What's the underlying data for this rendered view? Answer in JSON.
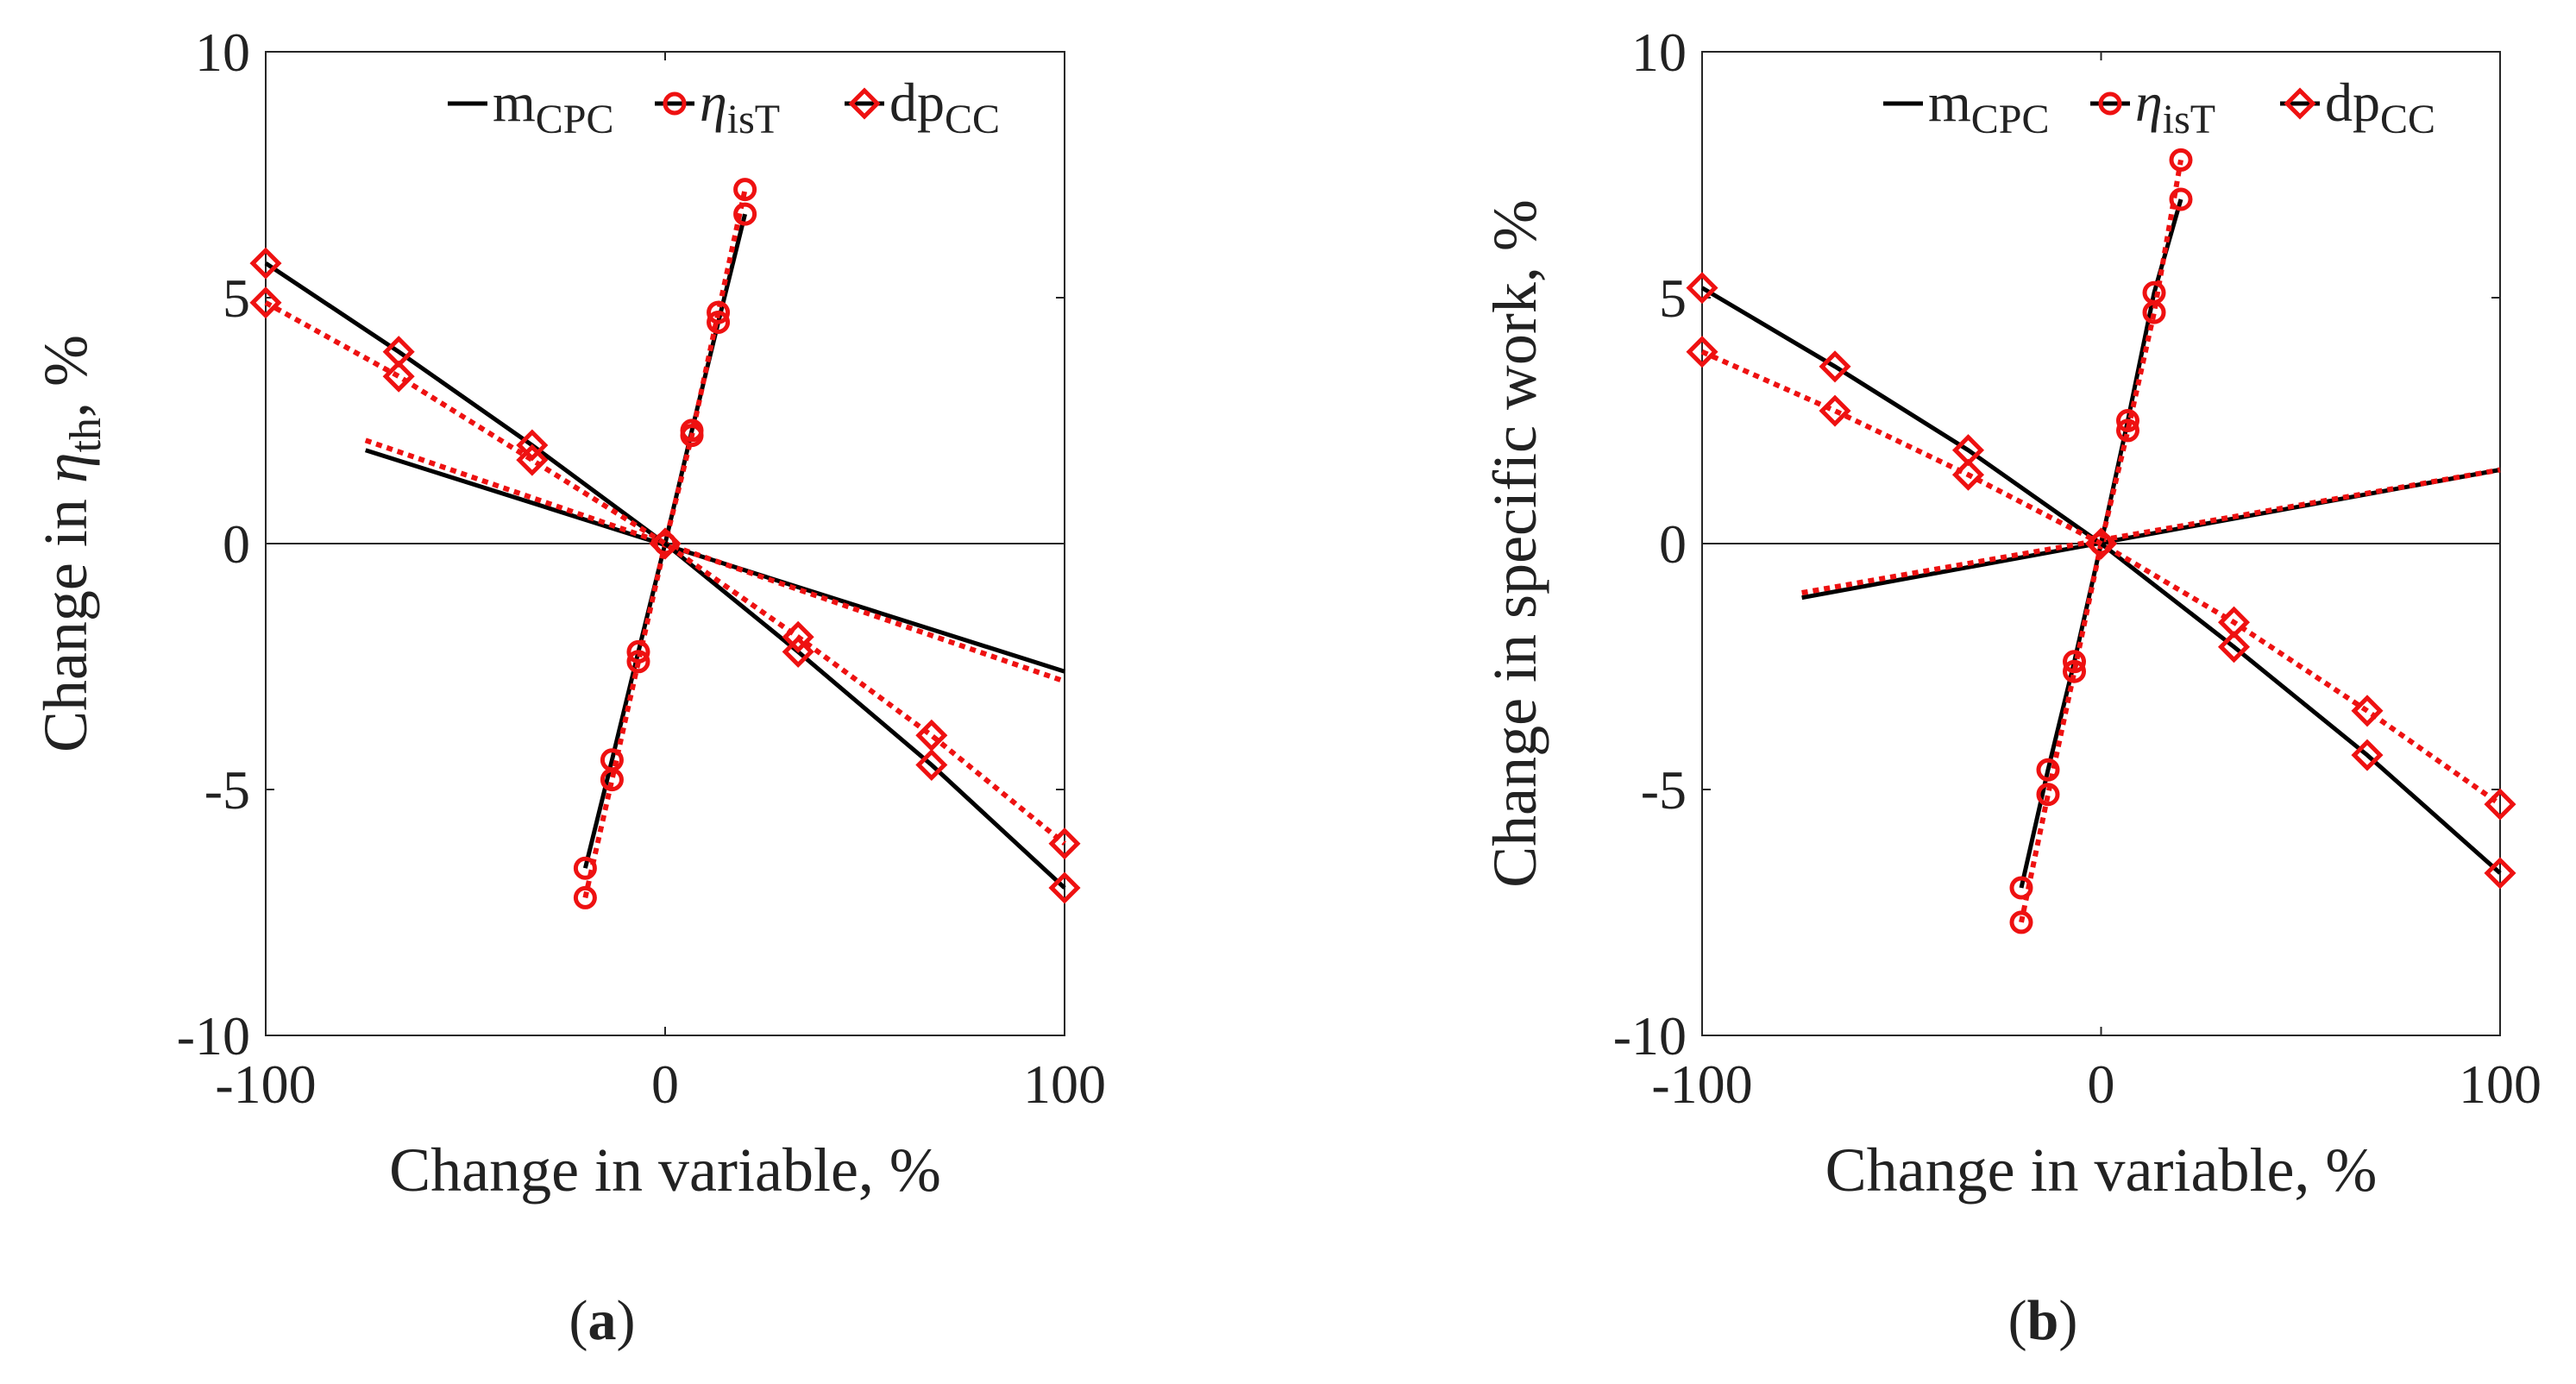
{
  "figure": {
    "captions": [
      "a",
      "b"
    ]
  },
  "chart_data": [
    {
      "type": "line",
      "panel": "a",
      "xlabel": "Change in variable, %",
      "ylabel_prefix": "Change in ",
      "ylabel_symbol": "η",
      "ylabel_sub": "th",
      "ylabel_suffix": ", %",
      "xlim": [
        -100,
        100
      ],
      "ylim": [
        -10,
        10
      ],
      "xticks": [
        -100,
        0,
        100
      ],
      "yticks": [
        -10,
        -5,
        0,
        5,
        10
      ],
      "grid": false,
      "zero_line": true,
      "legend_position": "top-right",
      "legend": [
        {
          "base": "m",
          "sub": "CPC",
          "marker": "none"
        },
        {
          "base": "η",
          "sub": "isT",
          "marker": "circle"
        },
        {
          "base": "dp",
          "sub": "CC",
          "marker": "diamond"
        }
      ],
      "colors": {
        "model": "#000000",
        "fit": "#ee1111"
      },
      "series": [
        {
          "name": "m_CPC model",
          "style": "solid",
          "marker": "none",
          "x": [
            -75,
            100
          ],
          "y": [
            1.9,
            -2.6
          ]
        },
        {
          "name": "m_CPC fit",
          "style": "dotted",
          "marker": "none",
          "x": [
            -75,
            100
          ],
          "y": [
            2.1,
            -2.8
          ]
        },
        {
          "name": "eta_isT model",
          "style": "solid",
          "marker": "circle",
          "x": [
            -20,
            -13.3,
            -6.7,
            0,
            6.7,
            13.3,
            20
          ],
          "y": [
            -6.6,
            -4.4,
            -2.2,
            0,
            2.3,
            4.5,
            6.7
          ]
        },
        {
          "name": "eta_isT fit",
          "style": "dotted",
          "marker": "circle",
          "x": [
            -20,
            -13.3,
            -6.7,
            0,
            6.7,
            13.3,
            20
          ],
          "y": [
            -7.2,
            -4.8,
            -2.4,
            0,
            2.2,
            4.7,
            7.2
          ]
        },
        {
          "name": "dp_CC model",
          "style": "solid",
          "marker": "diamond",
          "x": [
            -100,
            -66.7,
            -33.3,
            0,
            33.3,
            66.7,
            100
          ],
          "y": [
            5.7,
            3.9,
            2.0,
            0,
            -2.2,
            -4.5,
            -7.0
          ]
        },
        {
          "name": "dp_CC fit",
          "style": "dotted",
          "marker": "diamond",
          "x": [
            -100,
            -66.7,
            -33.3,
            0,
            33.3,
            66.7,
            100
          ],
          "y": [
            4.9,
            3.4,
            1.7,
            0,
            -1.9,
            -3.9,
            -6.1
          ]
        }
      ]
    },
    {
      "type": "line",
      "panel": "b",
      "xlabel": "Change in variable, %",
      "ylabel_prefix": "Change in specific work, %",
      "ylabel_symbol": "",
      "ylabel_sub": "",
      "ylabel_suffix": "",
      "xlim": [
        -100,
        100
      ],
      "ylim": [
        -10,
        10
      ],
      "xticks": [
        -100,
        0,
        100
      ],
      "yticks": [
        -10,
        -5,
        0,
        5,
        10
      ],
      "grid": false,
      "zero_line": true,
      "legend_position": "top-right",
      "legend": [
        {
          "base": "m",
          "sub": "CPC",
          "marker": "none"
        },
        {
          "base": "η",
          "sub": "isT",
          "marker": "circle"
        },
        {
          "base": "dp",
          "sub": "CC",
          "marker": "diamond"
        }
      ],
      "colors": {
        "model": "#000000",
        "fit": "#ee1111"
      },
      "series": [
        {
          "name": "m_CPC model",
          "style": "solid",
          "marker": "none",
          "x": [
            -75,
            100
          ],
          "y": [
            -1.1,
            1.5
          ]
        },
        {
          "name": "m_CPC fit",
          "style": "dotted",
          "marker": "none",
          "x": [
            -75,
            100
          ],
          "y": [
            -1.0,
            1.5
          ]
        },
        {
          "name": "eta_isT model",
          "style": "solid",
          "marker": "circle",
          "x": [
            -20,
            -13.3,
            -6.7,
            0,
            6.7,
            13.3,
            20
          ],
          "y": [
            -7.0,
            -4.6,
            -2.4,
            0,
            2.5,
            5.1,
            7.0
          ]
        },
        {
          "name": "eta_isT fit",
          "style": "dotted",
          "marker": "circle",
          "x": [
            -20,
            -13.3,
            -6.7,
            0,
            6.7,
            13.3,
            20
          ],
          "y": [
            -7.7,
            -5.1,
            -2.6,
            0,
            2.3,
            4.7,
            7.8
          ]
        },
        {
          "name": "dp_CC model",
          "style": "solid",
          "marker": "diamond",
          "x": [
            -100,
            -66.7,
            -33.3,
            0,
            33.3,
            66.7,
            100
          ],
          "y": [
            5.2,
            3.6,
            1.9,
            0,
            -2.1,
            -4.3,
            -6.7
          ]
        },
        {
          "name": "dp_CC fit",
          "style": "dotted",
          "marker": "diamond",
          "x": [
            -100,
            -66.7,
            -33.3,
            0,
            33.3,
            66.7,
            100
          ],
          "y": [
            3.9,
            2.7,
            1.4,
            0,
            -1.6,
            -3.4,
            -5.3
          ]
        }
      ]
    }
  ]
}
